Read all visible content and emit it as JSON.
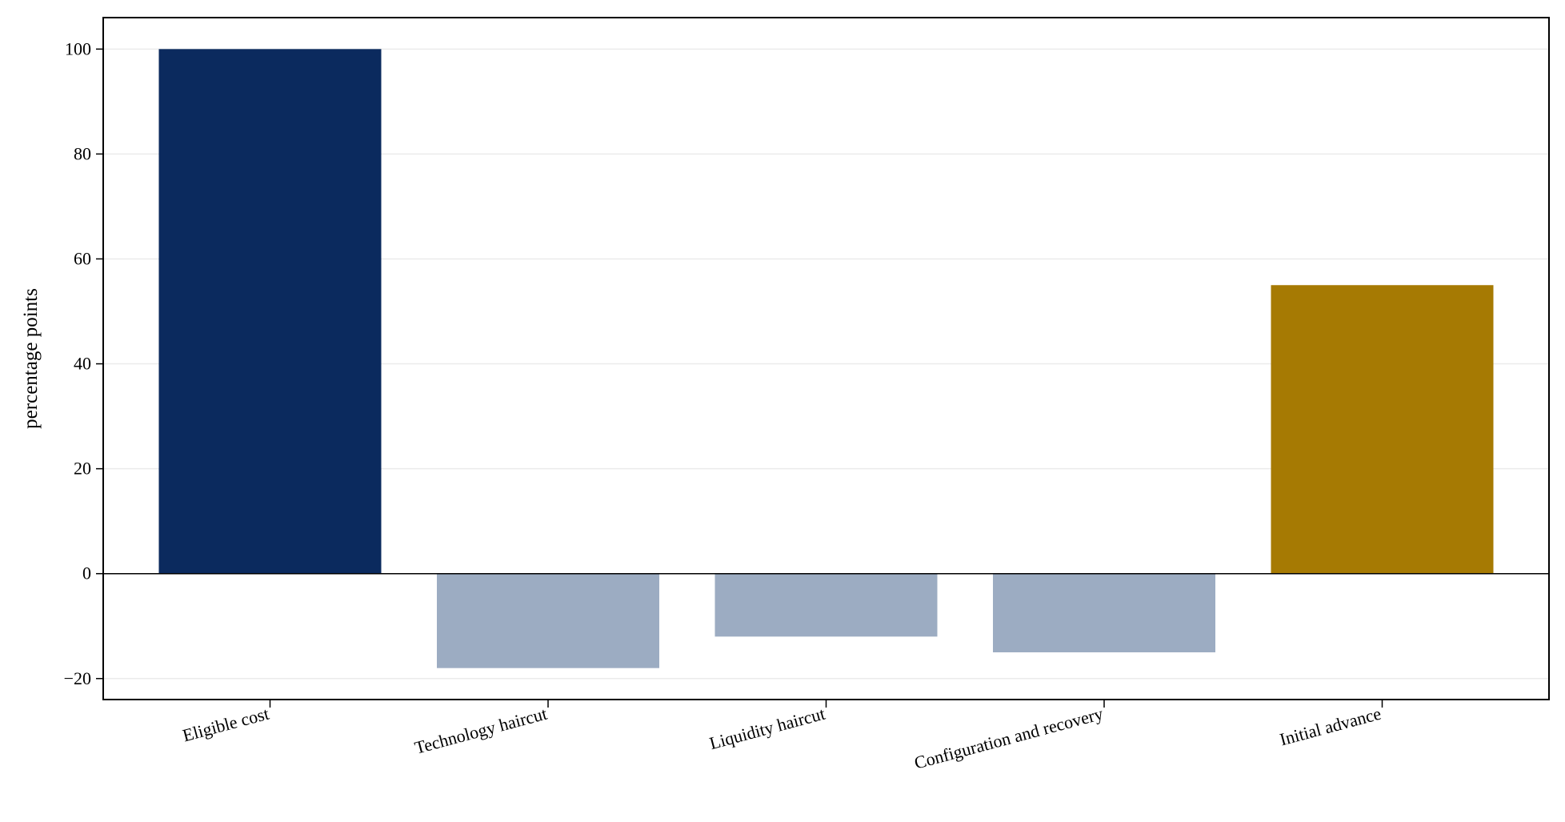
{
  "chart_data": {
    "type": "bar",
    "title": "",
    "xlabel": "",
    "ylabel": "percentage points",
    "ylim": [
      -24,
      106
    ],
    "yticks": [
      -20,
      0,
      20,
      40,
      60,
      80,
      100
    ],
    "ytick_labels": [
      "−20",
      "0",
      "20",
      "40",
      "60",
      "80",
      "100"
    ],
    "grid": "horizontal",
    "legend": "none",
    "zero_line": true,
    "categories": [
      "Eligible cost",
      "Technology haircut",
      "Liquidity haircut",
      "Configuration and recovery",
      "Initial advance"
    ],
    "values": [
      100,
      -18,
      -12,
      -15,
      55
    ],
    "colors": [
      "#0b2a5e",
      "#9cacc2",
      "#9cacc2",
      "#9cacc2",
      "#a67a03"
    ]
  }
}
